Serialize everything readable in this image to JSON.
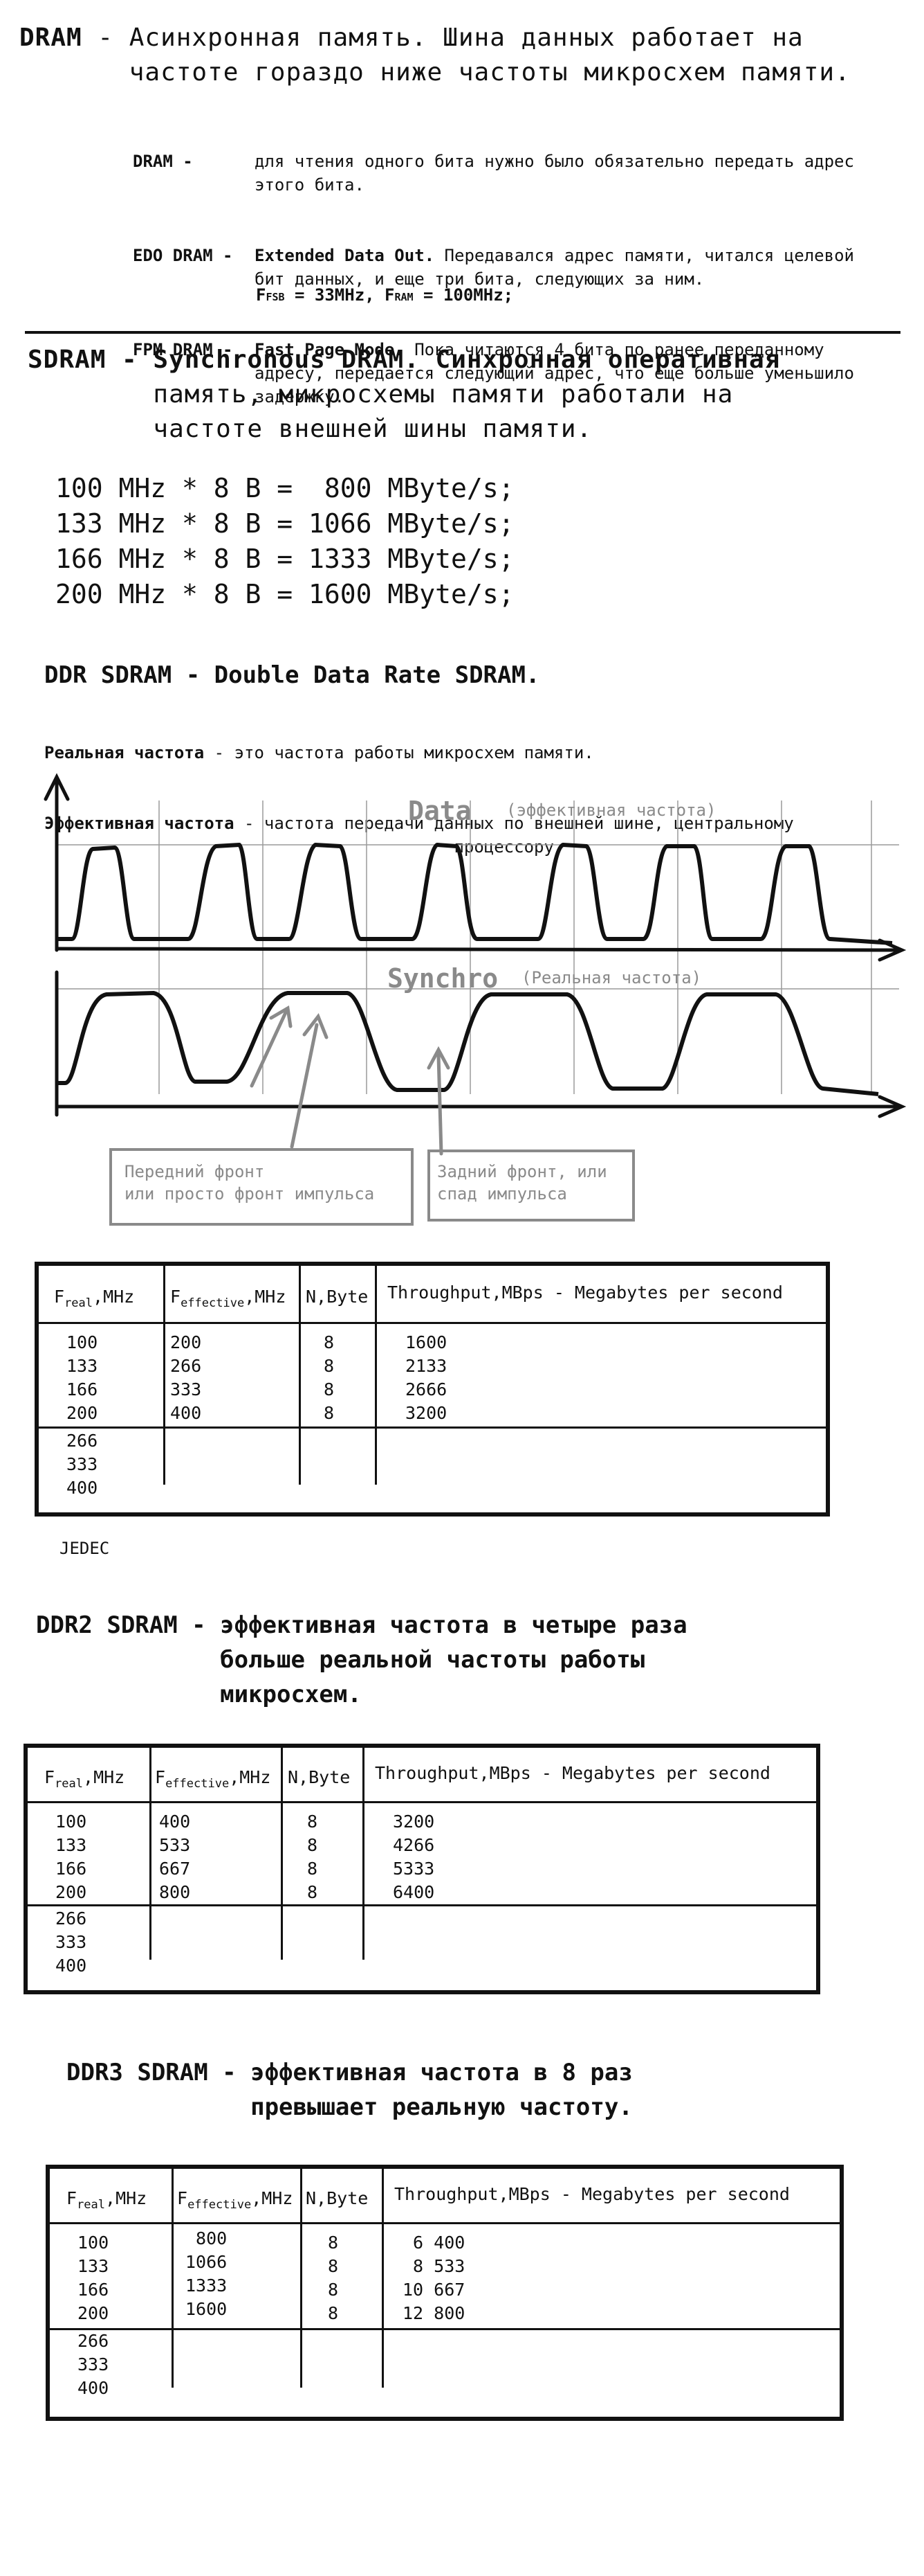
{
  "dram": {
    "title_line1": "DRAM - Асинхронная память. Шина данных работает на",
    "title_line2": "       частоте гораздо ниже частоты микросхем памяти.",
    "defs": [
      {
        "term": "DRAM -",
        "body_bold": "",
        "body": "для чтения одного бита нужно было обязательно передать адрес\nэтого бита."
      },
      {
        "term": "EDO DRAM -",
        "body_bold": "Extended Data Out.",
        "body": " Передавался адрес памяти, читался целевой\nбит данных, и еще три бита, следующих за ним."
      },
      {
        "term": "FPM DRAM -",
        "body_bold": "Fast Page Mode.",
        "body": " Пока читаются 4 бита по ранее переданному\nадресу, передается следующий адрес, что еще больше уменьшило\nзадержку."
      }
    ],
    "freq": {
      "f1": "F",
      "s1": "FSB",
      "v1": " = 33MHz, ",
      "f2": "F",
      "s2": "RAM",
      "v2": " = 100MHz;"
    }
  },
  "sdram": {
    "title_line1": "SDRAM - Synchronous DRAM. Синхронная оперативная",
    "title_line2": "        память, микросхемы памяти работали на",
    "title_line3": "        частоте внешней шины памяти.",
    "calc": [
      "100 MHz * 8 B =  800 MByte/s;",
      "133 MHz * 8 B = 1066 MByte/s;",
      "166 MHz * 8 B = 1333 MByte/s;",
      "200 MHz * 8 B = 1600 MByte/s;"
    ]
  },
  "ddr": {
    "title": "DDR SDRAM - Double Data Rate SDRAM.",
    "def1_term": "Реальная частота",
    "def1_body": " - это частота работы микросхем памяти.",
    "def2_term": "Эффективная частота",
    "def2_body": " - частота передачи данных по внешней шине, центральному\n                      процессору.",
    "diagram": {
      "data_label": "Data",
      "data_note": "(эффективная частота)",
      "sync_label": "Synchro",
      "sync_note": "(Реальная частота)"
    },
    "note_front": "Передний фронт\nили просто фронт импульса",
    "note_back": "Задний фронт, или\nспад импульса"
  },
  "table_headers": {
    "f_real": "F",
    "f_real_sub": "real",
    "f_real_unit": ",MHz",
    "f_eff": "F",
    "f_eff_sub": "effective",
    "f_eff_unit": ",MHz",
    "n_byte": "N,Byte",
    "throughput": "Throughput,MBps - Megabytes per second"
  },
  "ddr_table": {
    "real": "100\n133\n166\n200",
    "eff": "200\n266\n333\n400",
    "n": "8\n8\n8\n8",
    "tp": "1600\n2133\n2666\n3200",
    "extra": "266\n333\n400"
  },
  "jedec": "JEDEC",
  "ddr2": {
    "title_line1": "DDR2 SDRAM - эффективная частота в четыре раза",
    "title_line2": "             больше реальной частоты работы",
    "title_line3": "             микросхем.",
    "table": {
      "real": "100\n133\n166\n200",
      "eff": "400\n533\n667\n800",
      "n": "8\n8\n8\n8",
      "tp": "3200\n4266\n5333\n6400",
      "extra": "266\n333\n400"
    }
  },
  "ddr3": {
    "title_line1": "DDR3 SDRAM - эффективная частота в 8 раз",
    "title_line2": "             превышает реальную частоту.",
    "table": {
      "real": "100\n133\n166\n200",
      "eff": " 800\n1066\n1333\n1600",
      "n": "8\n8\n8\n8",
      "tp": " 6 400\n 8 533\n10 667\n12 800",
      "extra": "266\n333\n400"
    }
  }
}
